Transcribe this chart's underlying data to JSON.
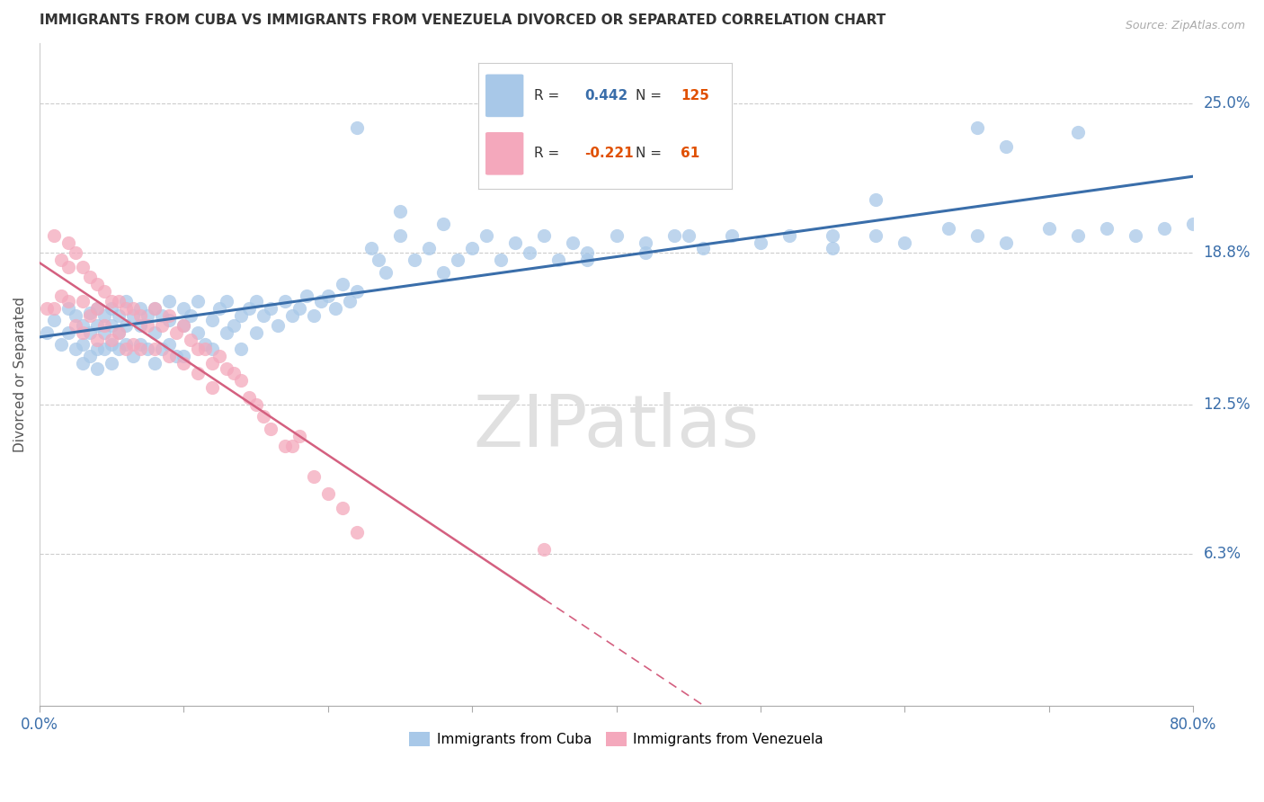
{
  "title": "IMMIGRANTS FROM CUBA VS IMMIGRANTS FROM VENEZUELA DIVORCED OR SEPARATED CORRELATION CHART",
  "source": "Source: ZipAtlas.com",
  "ylabel": "Divorced or Separated",
  "ytick_labels": [
    "25.0%",
    "18.8%",
    "12.5%",
    "6.3%"
  ],
  "ytick_values": [
    0.25,
    0.188,
    0.125,
    0.063
  ],
  "xmin": 0.0,
  "xmax": 0.8,
  "ymin": 0.0,
  "ymax": 0.275,
  "cuba_color": "#a8c8e8",
  "venezuela_color": "#f4a8bc",
  "cuba_line_color": "#3a6eaa",
  "venezuela_line_color": "#d46080",
  "watermark": "ZIPatlas",
  "legend_text_color": "#3a6eaa",
  "cuba_scatter_x": [
    0.005,
    0.01,
    0.015,
    0.02,
    0.02,
    0.025,
    0.025,
    0.03,
    0.03,
    0.03,
    0.035,
    0.035,
    0.035,
    0.04,
    0.04,
    0.04,
    0.04,
    0.045,
    0.045,
    0.045,
    0.05,
    0.05,
    0.05,
    0.05,
    0.055,
    0.055,
    0.055,
    0.06,
    0.06,
    0.06,
    0.065,
    0.065,
    0.07,
    0.07,
    0.07,
    0.075,
    0.075,
    0.08,
    0.08,
    0.08,
    0.085,
    0.085,
    0.09,
    0.09,
    0.09,
    0.095,
    0.1,
    0.1,
    0.1,
    0.105,
    0.11,
    0.11,
    0.115,
    0.12,
    0.12,
    0.125,
    0.13,
    0.13,
    0.135,
    0.14,
    0.14,
    0.145,
    0.15,
    0.15,
    0.155,
    0.16,
    0.165,
    0.17,
    0.175,
    0.18,
    0.185,
    0.19,
    0.195,
    0.2,
    0.205,
    0.21,
    0.215,
    0.22,
    0.23,
    0.235,
    0.24,
    0.25,
    0.26,
    0.27,
    0.28,
    0.29,
    0.3,
    0.31,
    0.32,
    0.33,
    0.34,
    0.35,
    0.36,
    0.37,
    0.38,
    0.4,
    0.42,
    0.44,
    0.46,
    0.48,
    0.5,
    0.52,
    0.55,
    0.58,
    0.6,
    0.63,
    0.65,
    0.67,
    0.7,
    0.72,
    0.74,
    0.76,
    0.78,
    0.8,
    0.38,
    0.42,
    0.45,
    0.55,
    0.65,
    0.67,
    0.72,
    0.58,
    0.22,
    0.25,
    0.28
  ],
  "cuba_scatter_y": [
    0.155,
    0.16,
    0.15,
    0.155,
    0.165,
    0.148,
    0.162,
    0.15,
    0.158,
    0.142,
    0.155,
    0.163,
    0.145,
    0.158,
    0.148,
    0.165,
    0.14,
    0.155,
    0.162,
    0.148,
    0.158,
    0.15,
    0.165,
    0.142,
    0.155,
    0.162,
    0.148,
    0.158,
    0.15,
    0.168,
    0.162,
    0.145,
    0.158,
    0.15,
    0.165,
    0.148,
    0.162,
    0.155,
    0.165,
    0.142,
    0.162,
    0.148,
    0.16,
    0.15,
    0.168,
    0.145,
    0.158,
    0.165,
    0.145,
    0.162,
    0.155,
    0.168,
    0.15,
    0.16,
    0.148,
    0.165,
    0.155,
    0.168,
    0.158,
    0.162,
    0.148,
    0.165,
    0.155,
    0.168,
    0.162,
    0.165,
    0.158,
    0.168,
    0.162,
    0.165,
    0.17,
    0.162,
    0.168,
    0.17,
    0.165,
    0.175,
    0.168,
    0.172,
    0.19,
    0.185,
    0.18,
    0.195,
    0.185,
    0.19,
    0.18,
    0.185,
    0.19,
    0.195,
    0.185,
    0.192,
    0.188,
    0.195,
    0.185,
    0.192,
    0.188,
    0.195,
    0.188,
    0.195,
    0.19,
    0.195,
    0.192,
    0.195,
    0.19,
    0.195,
    0.192,
    0.198,
    0.195,
    0.192,
    0.198,
    0.195,
    0.198,
    0.195,
    0.198,
    0.2,
    0.185,
    0.192,
    0.195,
    0.195,
    0.24,
    0.232,
    0.238,
    0.21,
    0.24,
    0.205,
    0.2
  ],
  "ven_scatter_x": [
    0.005,
    0.01,
    0.01,
    0.015,
    0.015,
    0.02,
    0.02,
    0.02,
    0.025,
    0.025,
    0.03,
    0.03,
    0.03,
    0.035,
    0.035,
    0.04,
    0.04,
    0.04,
    0.045,
    0.045,
    0.05,
    0.05,
    0.055,
    0.055,
    0.06,
    0.06,
    0.065,
    0.065,
    0.07,
    0.07,
    0.075,
    0.08,
    0.08,
    0.085,
    0.09,
    0.09,
    0.095,
    0.1,
    0.1,
    0.105,
    0.11,
    0.11,
    0.115,
    0.12,
    0.12,
    0.125,
    0.13,
    0.135,
    0.14,
    0.145,
    0.15,
    0.155,
    0.16,
    0.17,
    0.175,
    0.18,
    0.19,
    0.2,
    0.21,
    0.22,
    0.35
  ],
  "ven_scatter_y": [
    0.165,
    0.195,
    0.165,
    0.185,
    0.17,
    0.192,
    0.182,
    0.168,
    0.188,
    0.158,
    0.182,
    0.168,
    0.155,
    0.178,
    0.162,
    0.175,
    0.165,
    0.152,
    0.172,
    0.158,
    0.168,
    0.152,
    0.168,
    0.155,
    0.165,
    0.148,
    0.165,
    0.15,
    0.162,
    0.148,
    0.158,
    0.165,
    0.148,
    0.158,
    0.162,
    0.145,
    0.155,
    0.158,
    0.142,
    0.152,
    0.148,
    0.138,
    0.148,
    0.142,
    0.132,
    0.145,
    0.14,
    0.138,
    0.135,
    0.128,
    0.125,
    0.12,
    0.115,
    0.108,
    0.108,
    0.112,
    0.095,
    0.088,
    0.082,
    0.072,
    0.065
  ]
}
